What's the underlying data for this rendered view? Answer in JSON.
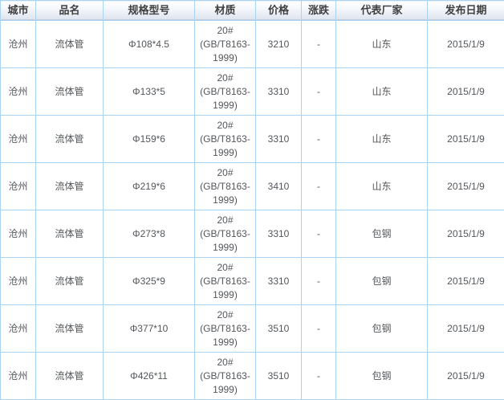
{
  "colors": {
    "table_border": "#a9d3f2",
    "header_gradient_top": "#ffffff",
    "header_gradient_bottom": "#dce3ee",
    "header_text": "#3f3f3f",
    "cell_text": "#53575b"
  },
  "table": {
    "columns": [
      {
        "key": "city",
        "label": "城市"
      },
      {
        "key": "product",
        "label": "品名"
      },
      {
        "key": "spec",
        "label": "规格型号"
      },
      {
        "key": "material",
        "label": "材质"
      },
      {
        "key": "price",
        "label": "价格"
      },
      {
        "key": "change",
        "label": "涨跌"
      },
      {
        "key": "manufacturer",
        "label": "代表厂家"
      },
      {
        "key": "date",
        "label": "发布日期"
      }
    ],
    "rows": [
      {
        "city": "沧州",
        "product": "流体管",
        "spec": "Φ108*4.5",
        "material": "20# (GB/T8163-1999)",
        "price": "3210",
        "change": "-",
        "manufacturer": "山东",
        "date": "2015/1/9"
      },
      {
        "city": "沧州",
        "product": "流体管",
        "spec": "Φ133*5",
        "material": "20# (GB/T8163-1999)",
        "price": "3310",
        "change": "-",
        "manufacturer": "山东",
        "date": "2015/1/9"
      },
      {
        "city": "沧州",
        "product": "流体管",
        "spec": "Φ159*6",
        "material": "20# (GB/T8163-1999)",
        "price": "3310",
        "change": "-",
        "manufacturer": "山东",
        "date": "2015/1/9"
      },
      {
        "city": "沧州",
        "product": "流体管",
        "spec": "Φ219*6",
        "material": "20# (GB/T8163-1999)",
        "price": "3410",
        "change": "-",
        "manufacturer": "山东",
        "date": "2015/1/9"
      },
      {
        "city": "沧州",
        "product": "流体管",
        "spec": "Φ273*8",
        "material": "20# (GB/T8163-1999)",
        "price": "3310",
        "change": "-",
        "manufacturer": "包钢",
        "date": "2015/1/9"
      },
      {
        "city": "沧州",
        "product": "流体管",
        "spec": "Φ325*9",
        "material": "20# (GB/T8163-1999)",
        "price": "3310",
        "change": "-",
        "manufacturer": "包钢",
        "date": "2015/1/9"
      },
      {
        "city": "沧州",
        "product": "流体管",
        "spec": "Φ377*10",
        "material": "20# (GB/T8163-1999)",
        "price": "3510",
        "change": "-",
        "manufacturer": "包钢",
        "date": "2015/1/9"
      },
      {
        "city": "沧州",
        "product": "流体管",
        "spec": "Φ426*11",
        "material": "20# (GB/T8163-1999)",
        "price": "3510",
        "change": "-",
        "manufacturer": "包钢",
        "date": "2015/1/9"
      }
    ]
  }
}
